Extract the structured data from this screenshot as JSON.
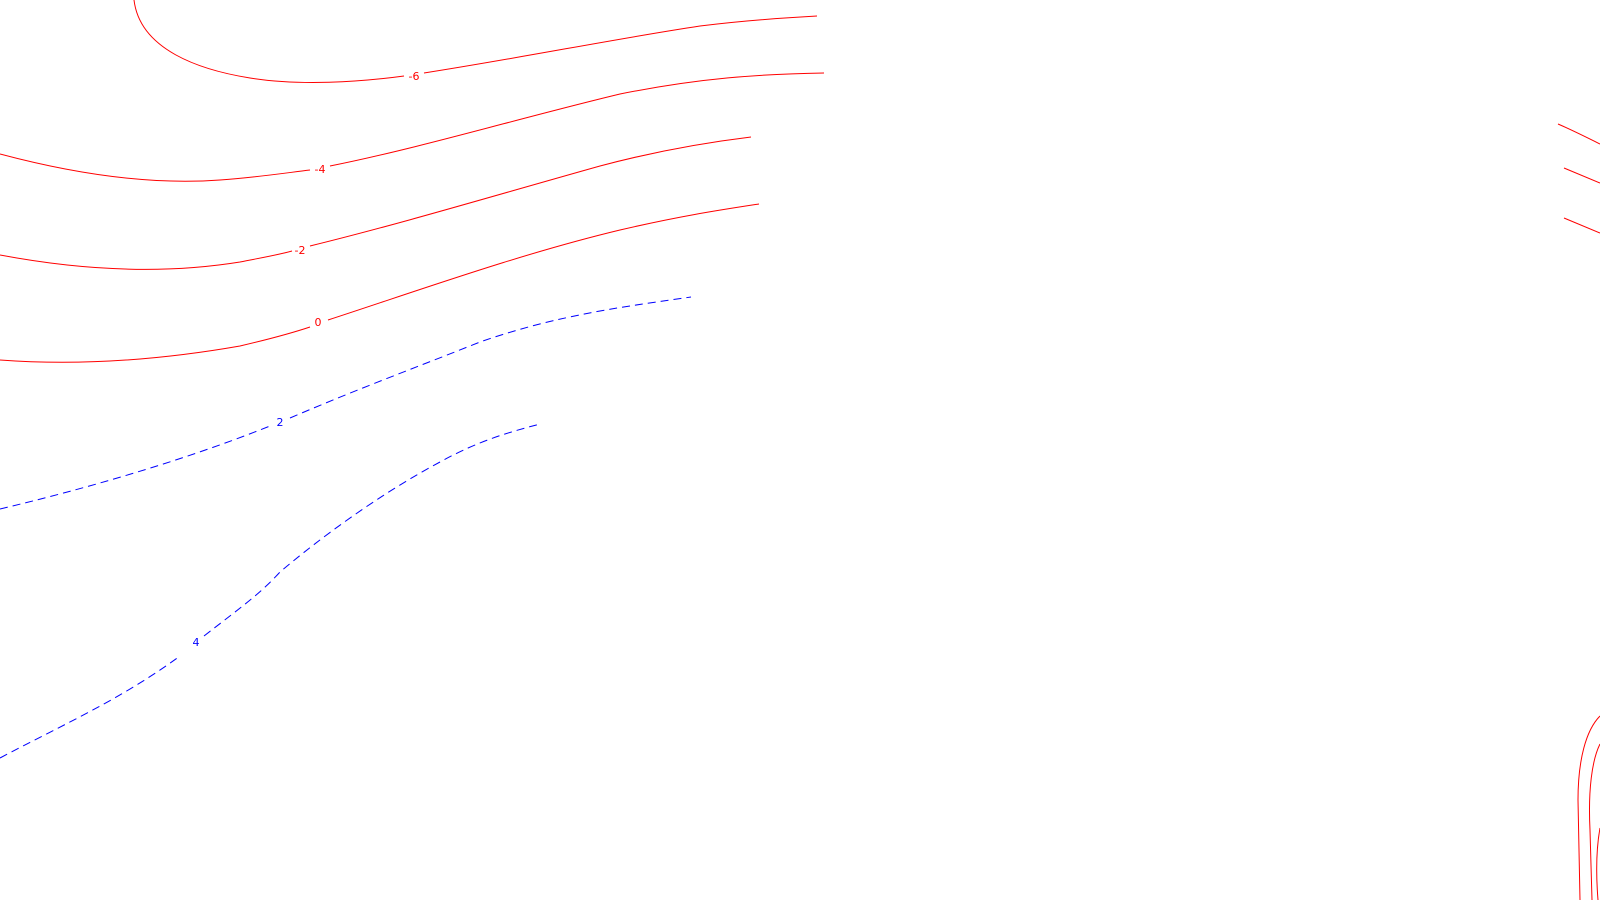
{
  "map": {
    "colors": {
      "negative": "#ff0000",
      "positive": "#0000ff",
      "background": "#ffffff"
    },
    "contours": [
      {
        "value": -6,
        "label": "-6",
        "sign": "negative",
        "style": "solid"
      },
      {
        "value": -4,
        "label": "-4",
        "sign": "negative",
        "style": "solid"
      },
      {
        "value": -2,
        "label": "-2",
        "sign": "negative",
        "style": "solid"
      },
      {
        "value": 0,
        "label": "0",
        "sign": "negative",
        "style": "solid"
      },
      {
        "value": 2,
        "label": "2",
        "sign": "positive",
        "style": "dashed"
      },
      {
        "value": 4,
        "label": "4",
        "sign": "positive",
        "style": "dashed"
      }
    ]
  }
}
